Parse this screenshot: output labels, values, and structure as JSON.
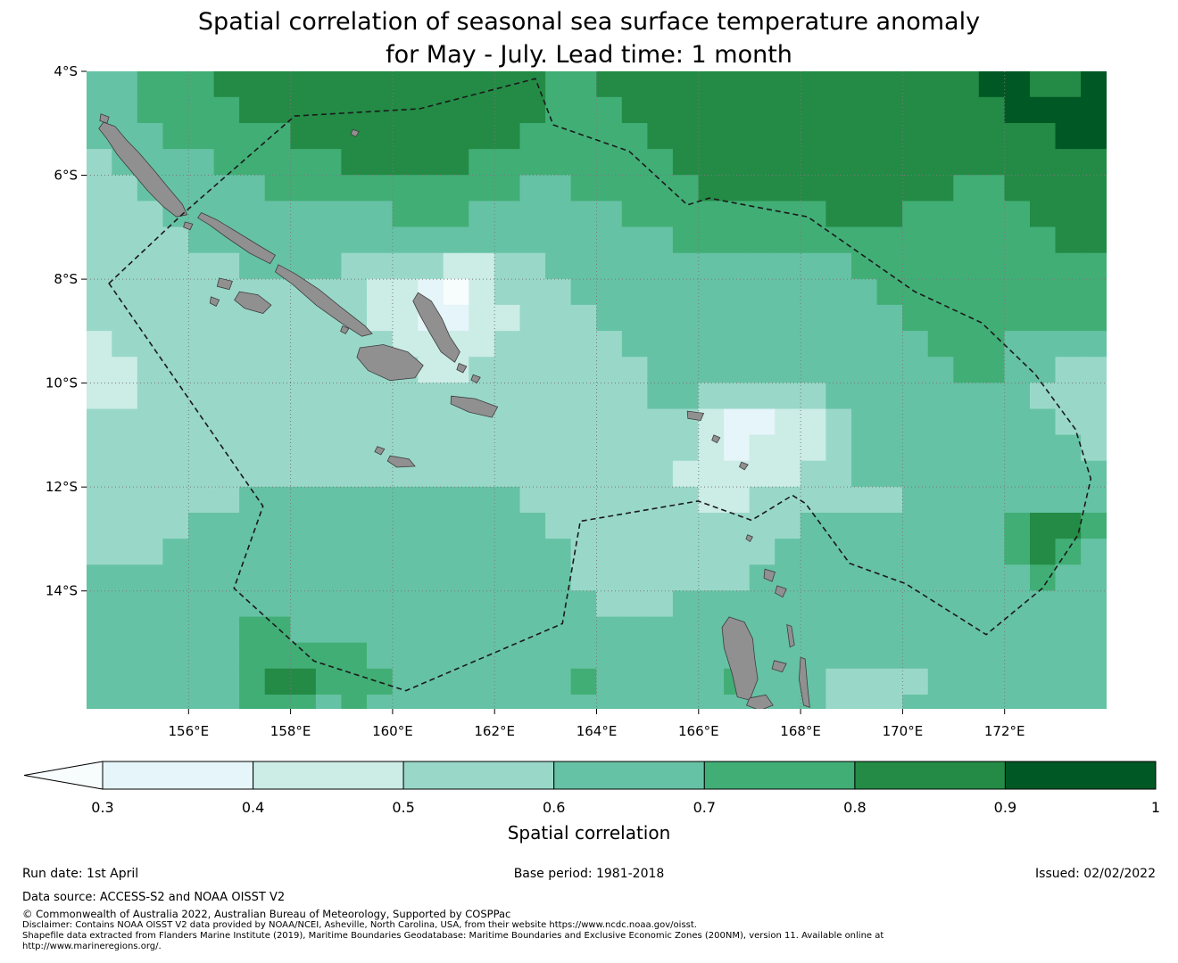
{
  "title": {
    "line1": "Spatial correlation of seasonal sea surface temperature anomaly",
    "line2": "for May - July. Lead time: 1 month"
  },
  "footer": {
    "run_date": "Run date: 1st April",
    "base_period": "Base period: 1981-2018",
    "issued": "Issued: 02/02/2022",
    "data_source": "Data source: ACCESS-S2 and NOAA OISST V2",
    "copyright": "© Commonwealth of Australia 2022, Australian Bureau of Meteorology, Supported by COSPPac",
    "disclaimer_line1": "Disclaimer: Contains NOAA OISST V2 data provided by NOAA/NCEI, Asheville, North Carolina, USA, from their website https://www.ncdc.noaa.gov/oisst.",
    "disclaimer_line2": "Shapefile data extracted from Flanders Marine Institute (2019), Maritime Boundaries Geodatabase: Maritime Boundaries and Exclusive Economic Zones (200NM), version 11. Available online at",
    "disclaimer_line3": "http://www.marineregions.org/."
  },
  "chart_data": {
    "type": "heatmap",
    "title": "Spatial correlation of seasonal sea surface temperature anomaly for May - July. Lead time: 1 month",
    "lon_range": [
      154,
      174
    ],
    "lat_range": [
      4,
      16.27
    ],
    "cell_deg": 0.5,
    "lon_ticks": [
      156,
      158,
      160,
      162,
      164,
      166,
      168,
      170,
      172
    ],
    "lon_tick_labels": [
      "156°E",
      "158°E",
      "160°E",
      "162°E",
      "164°E",
      "166°E",
      "168°E",
      "170°E",
      "172°E"
    ],
    "lat_ticks": [
      4,
      6,
      8,
      10,
      12,
      14
    ],
    "lat_tick_labels": [
      "4°S",
      "6°S",
      "8°S",
      "10°S",
      "12°S",
      "14°S"
    ],
    "grid_lats": [
      6,
      8,
      10,
      12,
      14
    ],
    "gridline_color": "#7a7a7a",
    "land_color": "#909090",
    "land_edge_color": "#3d3d3d",
    "value_bins": {
      "2": "<0.3",
      "3": "0.3-0.4",
      "4": "0.4-0.5",
      "5": "0.5-0.6",
      "6": "0.6-0.7",
      "7": "0.7-0.8",
      "8": "0.8-0.9",
      "9": "0.9-1"
    },
    "palette": {
      "2": "#f7fcfd",
      "3": "#e5f5f9",
      "4": "#ccece6",
      "5": "#99d8c9",
      "6": "#66c2a4",
      "7": "#41ae76",
      "8": "#238b45",
      "9": "#005824"
    },
    "grid_rows": [
      "6677788888888888887788888888888888899889",
      "6677778888888888887778888888888888889999",
      "6667777788888888877777888888888888888899",
      "5666677777888887777777788888888888888888",
      "5566666777777777766777778888888888778888",
      "5556666666667776666667777777788877777888",
      "5555666666666666666666677777777777777788",
      "5555556666555544556666666666667777777777",
      "5555555555544324555666666666666777777777",
      "5555555555544334455566666666666677777777",
      "4555555555554444555556666666666667776666",
      "4455555555555445555555666666666666776655",
      "4455555555555555555555665555566666666555",
      "5555555555555555555555554334456666666655",
      "5555555555555555555555554344456666666665",
      "5555555555555555555555544444556666666666",
      "5555556666666666655555554455555566666666",
      "5555666666666666665555555555666666667887",
      "5556666666666666666555555556666666667876",
      "6666666666666666666555555566666666666766",
      "6666666666666666666655566666666666666666",
      "6666667766666666666666666666666666666666",
      "6666667777766666666666666666666666666666",
      "6666667887776666666766666766655556666666",
      "6666667776766666666666666666655566666666"
    ],
    "islands": [
      [
        [
          154.28,
          4.82
        ],
        [
          154.44,
          4.88
        ],
        [
          154.4,
          5.0
        ],
        [
          154.26,
          4.95
        ]
      ],
      [
        [
          154.33,
          4.98
        ],
        [
          154.56,
          5.06
        ],
        [
          154.78,
          5.32
        ],
        [
          155.02,
          5.56
        ],
        [
          155.32,
          5.9
        ],
        [
          155.62,
          6.26
        ],
        [
          155.88,
          6.56
        ],
        [
          155.97,
          6.76
        ],
        [
          155.76,
          6.8
        ],
        [
          155.5,
          6.6
        ],
        [
          155.2,
          6.3
        ],
        [
          154.9,
          5.95
        ],
        [
          154.6,
          5.6
        ],
        [
          154.4,
          5.3
        ],
        [
          154.24,
          5.1
        ]
      ],
      [
        [
          155.93,
          6.9
        ],
        [
          156.08,
          6.94
        ],
        [
          156.03,
          7.05
        ],
        [
          155.9,
          7.0
        ]
      ],
      [
        [
          156.25,
          6.72
        ],
        [
          156.56,
          6.86
        ],
        [
          156.96,
          7.1
        ],
        [
          157.36,
          7.34
        ],
        [
          157.7,
          7.54
        ],
        [
          157.6,
          7.7
        ],
        [
          157.2,
          7.5
        ],
        [
          156.75,
          7.2
        ],
        [
          156.4,
          6.95
        ],
        [
          156.18,
          6.82
        ]
      ],
      [
        [
          156.6,
          7.98
        ],
        [
          156.86,
          8.04
        ],
        [
          156.8,
          8.2
        ],
        [
          156.56,
          8.14
        ]
      ],
      [
        [
          157.0,
          8.24
        ],
        [
          157.36,
          8.3
        ],
        [
          157.62,
          8.5
        ],
        [
          157.46,
          8.66
        ],
        [
          157.1,
          8.56
        ],
        [
          156.9,
          8.4
        ]
      ],
      [
        [
          156.44,
          8.34
        ],
        [
          156.6,
          8.4
        ],
        [
          156.54,
          8.52
        ],
        [
          156.42,
          8.46
        ]
      ],
      [
        [
          157.76,
          7.72
        ],
        [
          158.1,
          7.9
        ],
        [
          158.56,
          8.2
        ],
        [
          159.0,
          8.55
        ],
        [
          159.46,
          8.9
        ],
        [
          159.6,
          9.05
        ],
        [
          159.4,
          9.1
        ],
        [
          159.0,
          8.85
        ],
        [
          158.5,
          8.5
        ],
        [
          158.04,
          8.1
        ],
        [
          157.7,
          7.86
        ]
      ],
      [
        [
          159.02,
          8.9
        ],
        [
          159.14,
          8.95
        ],
        [
          159.08,
          9.05
        ],
        [
          158.98,
          9.0
        ]
      ],
      [
        [
          160.5,
          8.26
        ],
        [
          160.76,
          8.42
        ],
        [
          160.97,
          8.76
        ],
        [
          161.12,
          9.1
        ],
        [
          161.32,
          9.4
        ],
        [
          161.22,
          9.6
        ],
        [
          160.95,
          9.4
        ],
        [
          160.74,
          9.05
        ],
        [
          160.54,
          8.7
        ],
        [
          160.4,
          8.42
        ]
      ],
      [
        [
          161.3,
          9.62
        ],
        [
          161.45,
          9.68
        ],
        [
          161.38,
          9.8
        ],
        [
          161.26,
          9.74
        ]
      ],
      [
        [
          159.36,
          9.32
        ],
        [
          159.82,
          9.26
        ],
        [
          160.3,
          9.4
        ],
        [
          160.6,
          9.66
        ],
        [
          160.44,
          9.9
        ],
        [
          159.95,
          9.95
        ],
        [
          159.52,
          9.76
        ],
        [
          159.3,
          9.5
        ]
      ],
      [
        [
          161.15,
          10.25
        ],
        [
          161.62,
          10.3
        ],
        [
          162.06,
          10.46
        ],
        [
          161.95,
          10.66
        ],
        [
          161.5,
          10.56
        ],
        [
          161.14,
          10.4
        ]
      ],
      [
        [
          161.58,
          9.84
        ],
        [
          161.72,
          9.89
        ],
        [
          161.65,
          10.0
        ],
        [
          161.54,
          9.94
        ]
      ],
      [
        [
          159.95,
          11.4
        ],
        [
          160.32,
          11.46
        ],
        [
          160.44,
          11.6
        ],
        [
          160.08,
          11.62
        ],
        [
          159.9,
          11.5
        ]
      ],
      [
        [
          159.7,
          11.22
        ],
        [
          159.84,
          11.27
        ],
        [
          159.77,
          11.38
        ],
        [
          159.65,
          11.32
        ]
      ],
      [
        [
          159.22,
          5.12
        ],
        [
          159.34,
          5.16
        ],
        [
          159.28,
          5.26
        ],
        [
          159.18,
          5.21
        ]
      ],
      [
        [
          165.78,
          10.54
        ],
        [
          166.1,
          10.58
        ],
        [
          166.04,
          10.72
        ],
        [
          165.79,
          10.68
        ]
      ],
      [
        [
          166.3,
          11.0
        ],
        [
          166.42,
          11.05
        ],
        [
          166.36,
          11.15
        ],
        [
          166.26,
          11.1
        ]
      ],
      [
        [
          166.84,
          11.52
        ],
        [
          166.97,
          11.57
        ],
        [
          166.9,
          11.67
        ],
        [
          166.8,
          11.61
        ]
      ],
      [
        [
          166.96,
          12.92
        ],
        [
          167.06,
          12.96
        ],
        [
          167.01,
          13.05
        ],
        [
          166.93,
          13.0
        ]
      ],
      [
        [
          167.3,
          13.58
        ],
        [
          167.5,
          13.64
        ],
        [
          167.44,
          13.82
        ],
        [
          167.28,
          13.75
        ]
      ],
      [
        [
          167.54,
          13.9
        ],
        [
          167.72,
          13.96
        ],
        [
          167.65,
          14.12
        ],
        [
          167.5,
          14.04
        ]
      ],
      [
        [
          166.6,
          14.5
        ],
        [
          166.9,
          14.6
        ],
        [
          167.06,
          14.92
        ],
        [
          167.1,
          15.3
        ],
        [
          167.16,
          15.7
        ],
        [
          167.0,
          16.1
        ],
        [
          166.76,
          16.04
        ],
        [
          166.66,
          15.6
        ],
        [
          166.5,
          15.1
        ],
        [
          166.46,
          14.7
        ]
      ],
      [
        [
          167.73,
          14.65
        ],
        [
          167.82,
          14.68
        ],
        [
          167.88,
          15.04
        ],
        [
          167.79,
          15.08
        ]
      ],
      [
        [
          167.48,
          15.34
        ],
        [
          167.72,
          15.4
        ],
        [
          167.64,
          15.56
        ],
        [
          167.44,
          15.5
        ]
      ],
      [
        [
          168.0,
          15.28
        ],
        [
          168.09,
          15.31
        ],
        [
          168.14,
          15.88
        ],
        [
          168.18,
          16.24
        ],
        [
          168.06,
          16.2
        ],
        [
          167.97,
          15.7
        ]
      ],
      [
        [
          167.0,
          16.06
        ],
        [
          167.32,
          16.0
        ],
        [
          167.46,
          16.2
        ],
        [
          167.2,
          16.3
        ],
        [
          166.94,
          16.2
        ]
      ]
    ],
    "eez_boundary": [
      [
        154.44,
        8.08
      ],
      [
        155.89,
        6.74
      ],
      [
        158.08,
        4.86
      ],
      [
        160.53,
        4.72
      ],
      [
        162.8,
        4.14
      ],
      [
        163.15,
        5.03
      ],
      [
        164.64,
        5.54
      ],
      [
        165.78,
        6.57
      ],
      [
        166.21,
        6.44
      ],
      [
        168.14,
        6.8
      ],
      [
        170.24,
        8.24
      ],
      [
        171.55,
        8.84
      ],
      [
        172.6,
        9.83
      ],
      [
        173.39,
        10.89
      ],
      [
        173.69,
        11.84
      ],
      [
        173.44,
        12.92
      ],
      [
        172.74,
        13.95
      ],
      [
        171.64,
        14.84
      ],
      [
        170.06,
        13.86
      ],
      [
        168.96,
        13.47
      ],
      [
        168.1,
        12.32
      ],
      [
        167.84,
        12.16
      ],
      [
        167.04,
        12.64
      ],
      [
        165.99,
        12.27
      ],
      [
        163.68,
        12.66
      ],
      [
        163.33,
        14.63
      ],
      [
        160.26,
        15.92
      ],
      [
        158.46,
        15.35
      ],
      [
        156.89,
        13.95
      ],
      [
        157.46,
        12.37
      ]
    ],
    "colorbar": {
      "label": "Spatial correlation",
      "tick_labels": [
        "0.3",
        "0.4",
        "0.5",
        "0.6",
        "0.7",
        "0.8",
        "0.9",
        "1"
      ],
      "segment_colors": [
        "#e5f5f9",
        "#ccece6",
        "#99d8c9",
        "#66c2a4",
        "#41ae76",
        "#238b45",
        "#005824"
      ],
      "arrow_color": "#f7fcfd"
    }
  }
}
